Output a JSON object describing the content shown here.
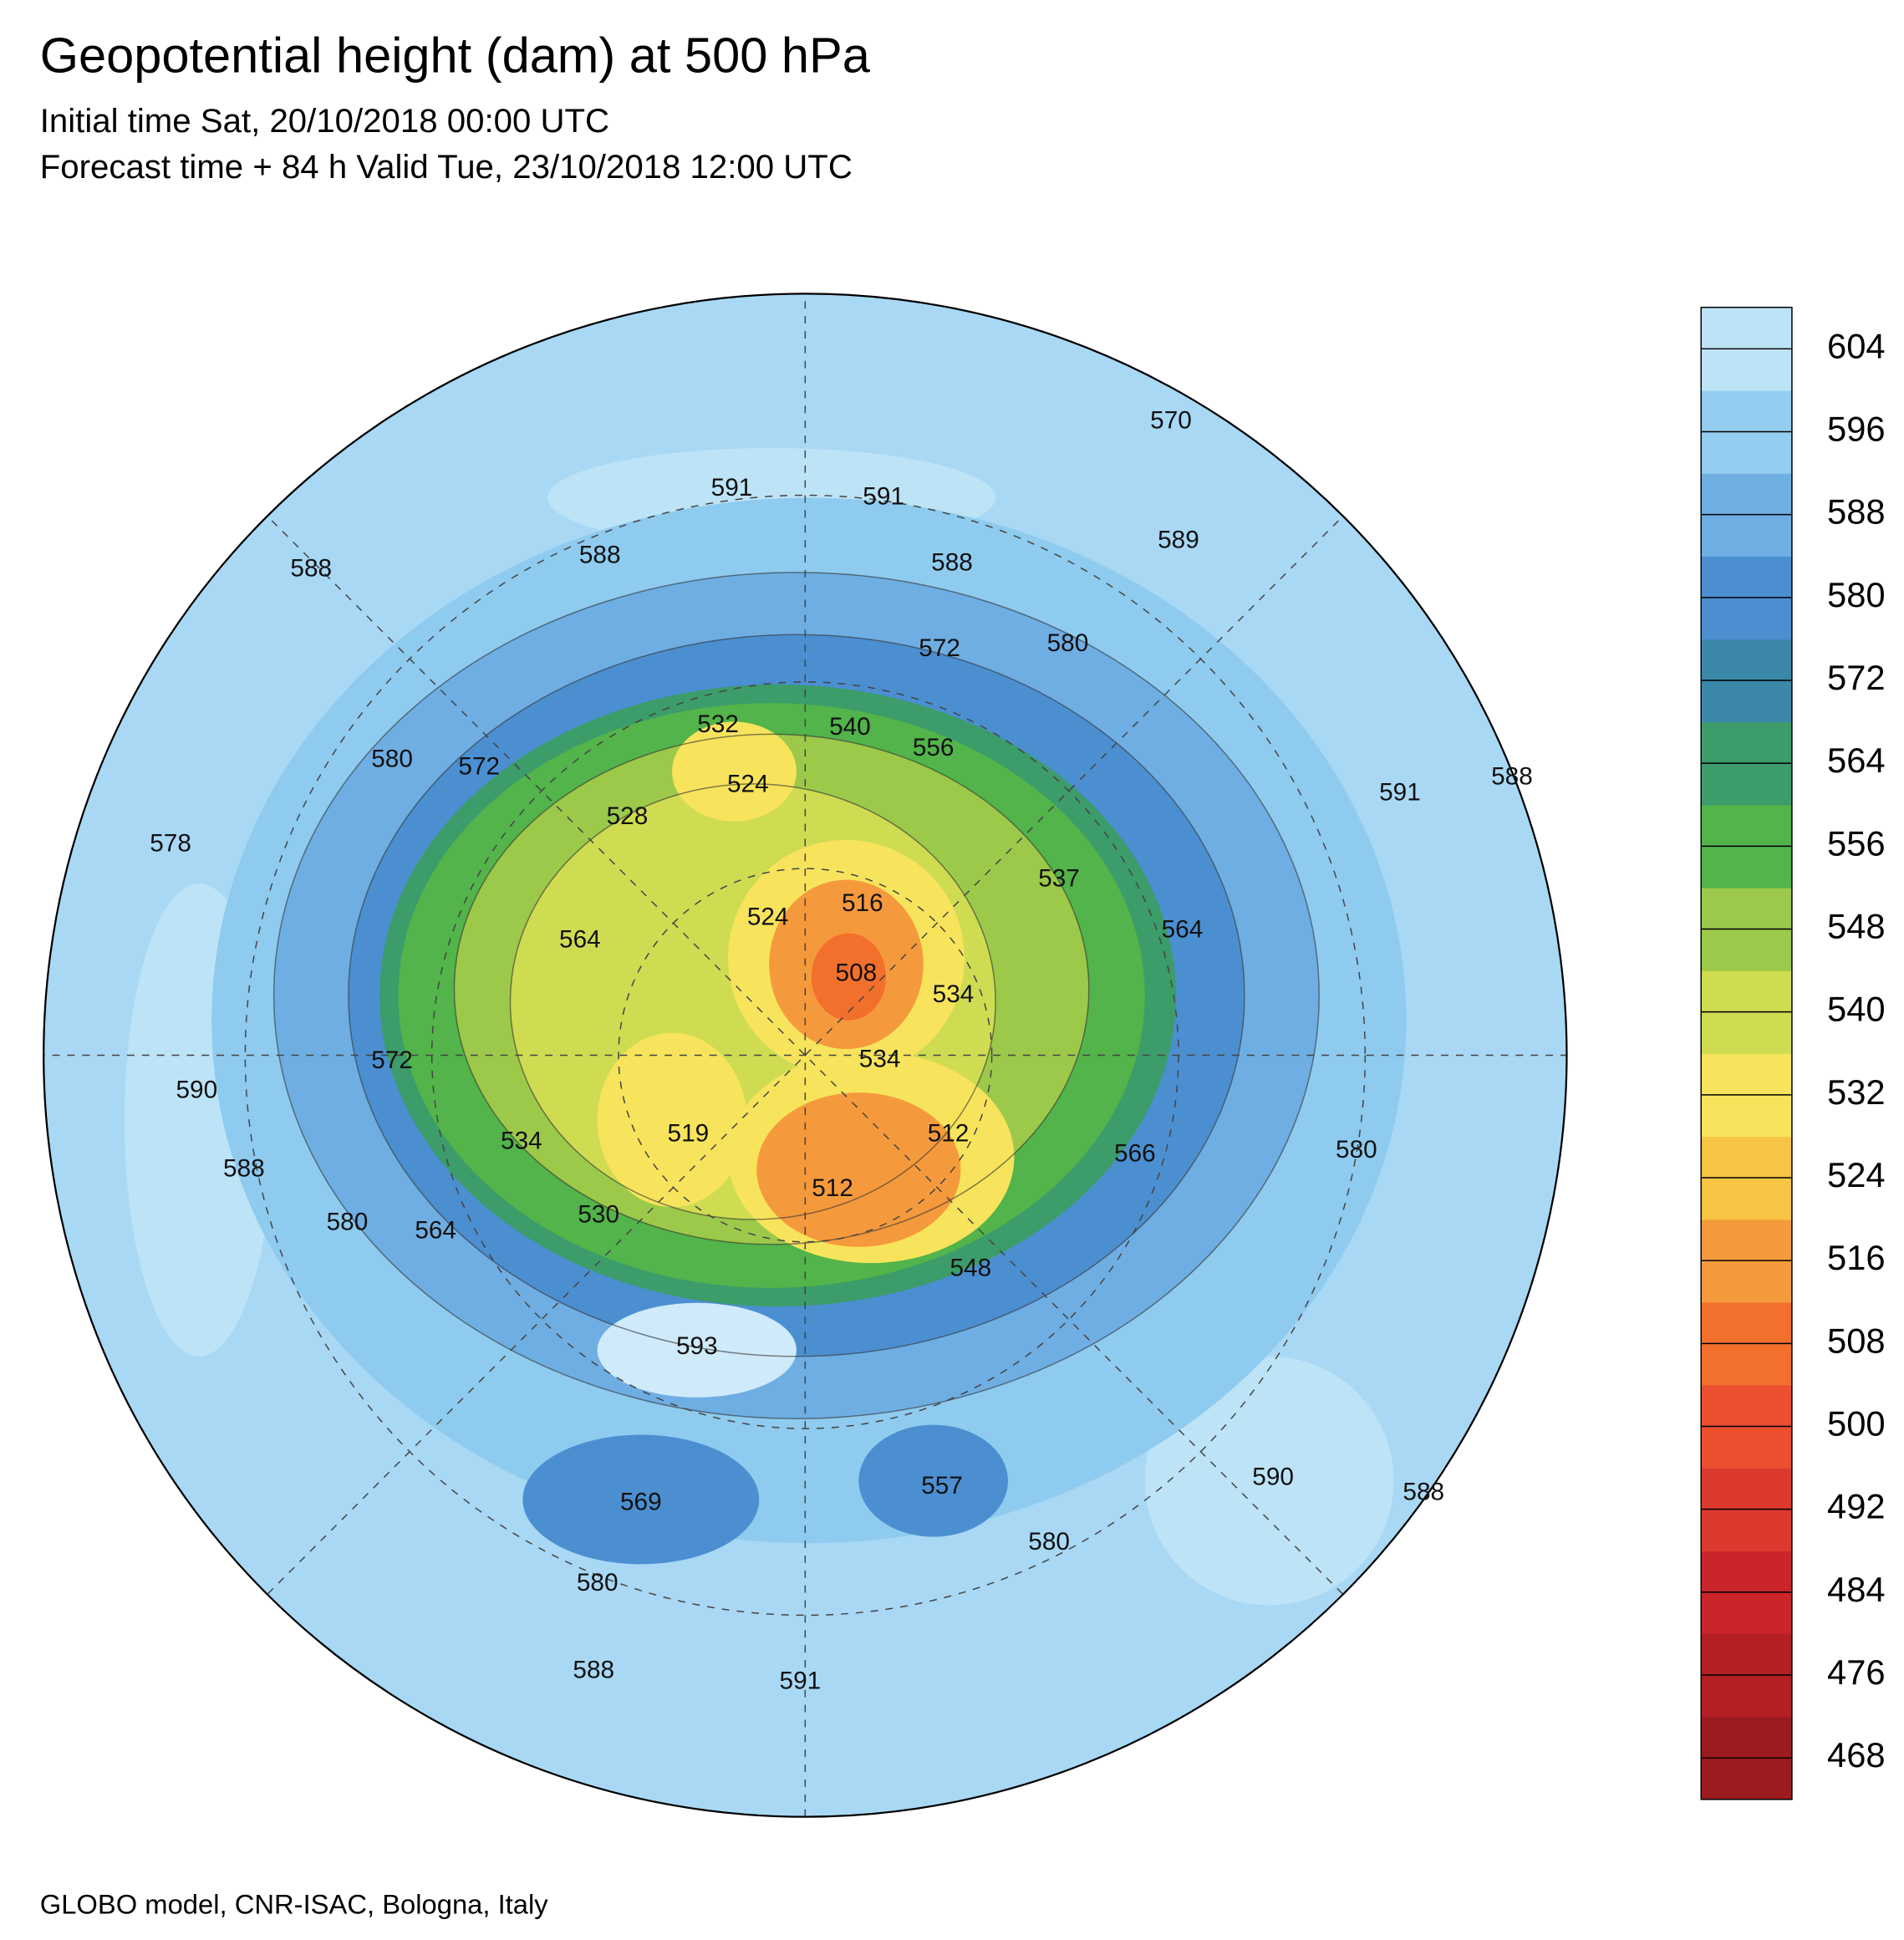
{
  "header": {
    "title": "Geopotential height (dam) at 500 hPa",
    "initial_time": "Initial time Sat, 20/10/2018 00:00 UTC",
    "forecast_time": "Forecast time + 84 h Valid Tue, 23/10/2018 12:00 UTC"
  },
  "map": {
    "contour_labels": [
      591,
      591,
      588,
      588,
      589,
      588,
      570,
      572,
      580,
      580,
      572,
      532,
      524,
      540,
      556,
      528,
      578,
      591,
      588,
      537,
      516,
      524,
      564,
      508,
      534,
      564,
      534,
      572,
      590,
      534,
      519,
      512,
      566,
      588,
      512,
      530,
      580,
      564,
      580,
      548,
      593,
      569,
      557,
      590,
      588,
      580,
      580,
      588,
      591
    ]
  },
  "colorbar": {
    "range": [
      464,
      608
    ],
    "ticks": [
      604,
      596,
      588,
      580,
      572,
      564,
      556,
      548,
      540,
      532,
      524,
      516,
      508,
      500,
      492,
      484,
      476,
      468
    ],
    "colors": [
      "#9b1b1e",
      "#b41f24",
      "#c9252a",
      "#dc3a2f",
      "#ea4f2e",
      "#f36f2c",
      "#f59a3c",
      "#f8c444",
      "#f7e45c",
      "#cfdc52",
      "#9cc94a",
      "#52b44a",
      "#3c9c6a",
      "#3b88a8",
      "#4b8fd1",
      "#6eaee3",
      "#94cdef",
      "#bde3f7"
    ]
  },
  "footer": {
    "credit": "GLOBO model, CNR-ISAC, Bologna, Italy"
  }
}
